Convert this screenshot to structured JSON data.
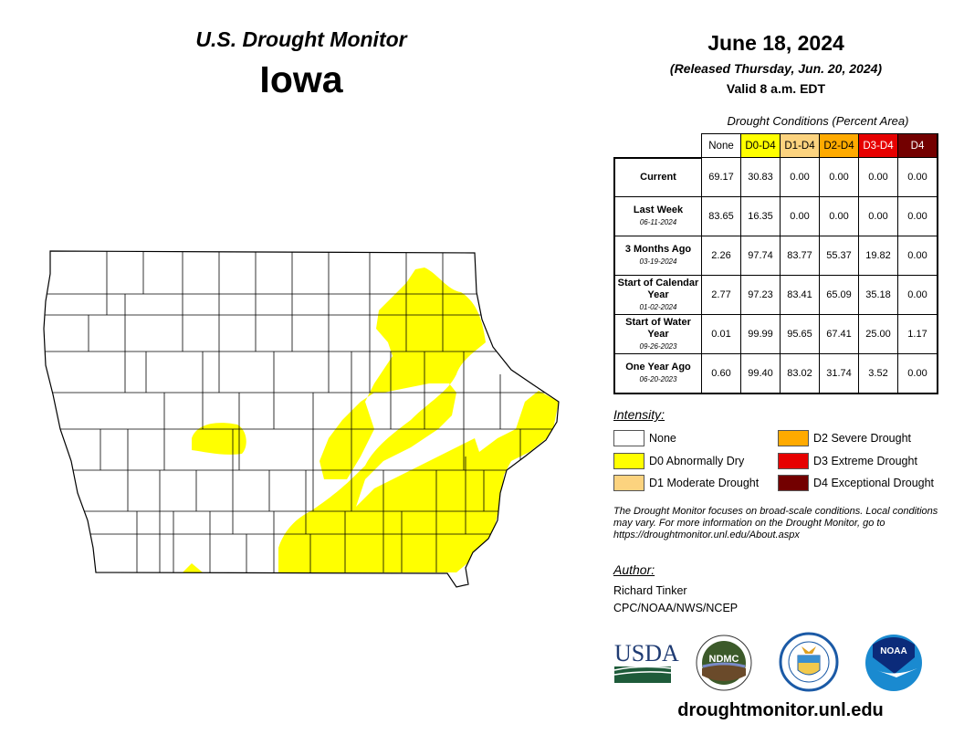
{
  "header": {
    "title": "U.S. Drought Monitor",
    "region": "Iowa",
    "date": "June 18, 2024",
    "released": "(Released Thursday, Jun. 20, 2024)",
    "valid": "Valid 8 a.m. EDT"
  },
  "table": {
    "caption": "Drought Conditions (Percent Area)",
    "columns": [
      {
        "label": "None",
        "bg": "#ffffff",
        "fg": "#000000"
      },
      {
        "label": "D0-D4",
        "bg": "#ffff00",
        "fg": "#000000"
      },
      {
        "label": "D1-D4",
        "bg": "#fcd37f",
        "fg": "#000000"
      },
      {
        "label": "D2-D4",
        "bg": "#ffaa00",
        "fg": "#000000"
      },
      {
        "label": "D3-D4",
        "bg": "#e60000",
        "fg": "#ffffff"
      },
      {
        "label": "D4",
        "bg": "#730000",
        "fg": "#ffffff"
      }
    ],
    "rows": [
      {
        "label": "Current",
        "date": "",
        "values": [
          "69.17",
          "30.83",
          "0.00",
          "0.00",
          "0.00",
          "0.00"
        ]
      },
      {
        "label": "Last Week",
        "date": "06-11-2024",
        "values": [
          "83.65",
          "16.35",
          "0.00",
          "0.00",
          "0.00",
          "0.00"
        ]
      },
      {
        "label": "3 Months Ago",
        "date": "03-19-2024",
        "values": [
          "2.26",
          "97.74",
          "83.77",
          "55.37",
          "19.82",
          "0.00"
        ]
      },
      {
        "label": "Start of Calendar Year",
        "date": "01-02-2024",
        "values": [
          "2.77",
          "97.23",
          "83.41",
          "65.09",
          "35.18",
          "0.00"
        ]
      },
      {
        "label": "Start of Water Year",
        "date": "09-26-2023",
        "values": [
          "0.01",
          "99.99",
          "95.65",
          "67.41",
          "25.00",
          "1.17"
        ]
      },
      {
        "label": "One Year Ago",
        "date": "06-20-2023",
        "values": [
          "0.60",
          "99.40",
          "83.02",
          "31.74",
          "3.52",
          "0.00"
        ]
      }
    ]
  },
  "legend": {
    "heading": "Intensity:",
    "items": [
      {
        "label": "None",
        "color": "#ffffff"
      },
      {
        "label": "D0 Abnormally Dry",
        "color": "#ffff00"
      },
      {
        "label": "D1 Moderate Drought",
        "color": "#fcd37f"
      },
      {
        "label": "D2 Severe Drought",
        "color": "#ffaa00"
      },
      {
        "label": "D3 Extreme Drought",
        "color": "#e60000"
      },
      {
        "label": "D4 Exceptional Drought",
        "color": "#730000"
      }
    ]
  },
  "note": "The Drought Monitor focuses on broad-scale conditions. Local conditions may vary. For more information on the Drought Monitor, go to https://droughtmonitor.unl.edu/About.aspx",
  "author": {
    "heading": "Author:",
    "name": "Richard Tinker",
    "org": "CPC/NOAA/NWS/NCEP"
  },
  "logos": {
    "usda": "USDA",
    "ndmc": "NDMC",
    "noaa": "NOAA"
  },
  "footer": {
    "url": "droughtmonitor.unl.edu"
  }
}
